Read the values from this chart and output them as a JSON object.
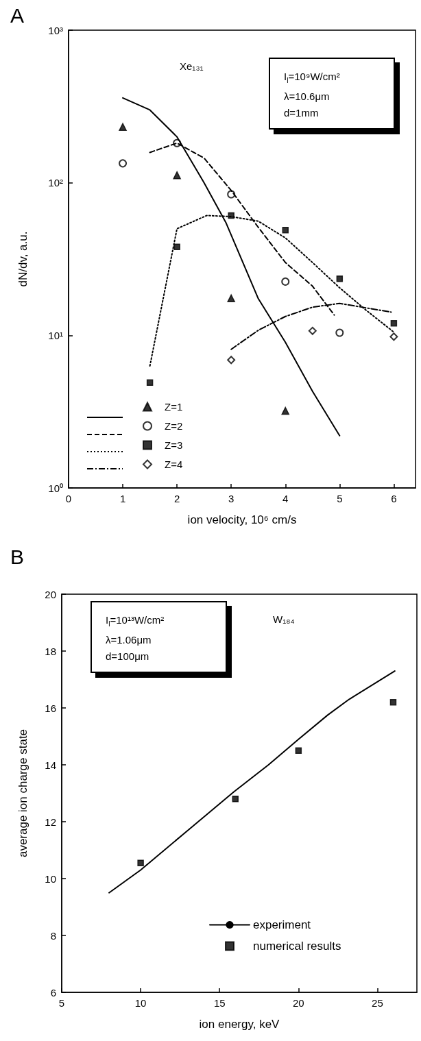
{
  "chart_data": [
    {
      "type": "line",
      "title": "A",
      "xlabel": "ion velocity, 10⁶ cm/s",
      "ylabel": "dN/dv, a.u.",
      "log": "y",
      "legend": "bottom left",
      "xlim": [
        0,
        6.4
      ],
      "xticks": [
        0,
        1,
        2,
        3,
        4,
        5,
        6
      ],
      "ylim": [
        1,
        1000
      ],
      "yticks": [
        {
          "value": 1,
          "label": "10⁰"
        },
        {
          "value": 10,
          "label": "10¹"
        },
        {
          "value": 100,
          "label": "10²"
        },
        {
          "value": 1000,
          "label": "10³"
        }
      ],
      "annotations": [
        "Xe₁₃₁",
        "I$_{l}$=10⁹W/cm²",
        "λ=10.6μm",
        "d=1mm"
      ],
      "series": [
        {
          "type": "line",
          "line_style": "solid",
          "color": "#000000",
          "x": [
            1,
            1.5,
            2,
            2.5,
            2.9,
            3.5,
            4,
            4.5,
            5
          ],
          "values": [
            360,
            300,
            200,
            100,
            55,
            17.4,
            9,
            4.3,
            2.2
          ]
        },
        {
          "type": "line",
          "line_style": "dashed",
          "color": "#000000",
          "x": [
            1.5,
            2,
            2.5,
            3,
            3.5,
            4,
            4.5,
            4.9
          ],
          "values": [
            158,
            182,
            145,
            89,
            51,
            30,
            21,
            13.6
          ]
        },
        {
          "type": "line",
          "line_style": "dotted",
          "color": "#000000",
          "x": [
            1.5,
            2,
            2.55,
            3,
            3.5,
            4,
            4.5,
            5,
            5.5,
            6
          ],
          "values": [
            6.3,
            50,
            61,
            60,
            56,
            43.5,
            30,
            20.5,
            14.5,
            10.5
          ]
        },
        {
          "type": "line",
          "line_style": "dashdot",
          "color": "#000000",
          "x": [
            3,
            3.5,
            4,
            4.5,
            5,
            5.95
          ],
          "values": [
            8.1,
            10.8,
            13.3,
            15.3,
            16.2,
            14.2
          ]
        },
        {
          "name": "Z=1",
          "type": "scatter",
          "marker": "triangle",
          "color": "#000000",
          "x": [
            1,
            2,
            3,
            4
          ],
          "values": [
            232,
            112,
            17.5,
            3.2
          ]
        },
        {
          "name": "Z=2",
          "type": "scatter",
          "marker": "circle",
          "color": "#000000",
          "x": [
            1,
            2,
            3,
            4,
            5
          ],
          "values": [
            134,
            182,
            84,
            22.5,
            10.4
          ]
        },
        {
          "name": "Z=3",
          "type": "scatter",
          "marker": "square",
          "color": "#000000",
          "x": [
            1.5,
            2,
            3,
            4,
            5,
            6
          ],
          "values": [
            4.9,
            38,
            61,
            49,
            23.5,
            12
          ]
        },
        {
          "name": "Z=4",
          "type": "scatter",
          "marker": "diamond",
          "color": "#000000",
          "x": [
            3,
            4.5,
            6
          ],
          "values": [
            6.9,
            10.7,
            9.8
          ]
        }
      ]
    },
    {
      "type": "line",
      "title": "B",
      "xlabel": "ion energy, keV",
      "ylabel": "average ion charge state",
      "legend": "bottom right",
      "xlim": [
        5,
        27.5
      ],
      "xticks": [
        5,
        10,
        15,
        20,
        25
      ],
      "ylim": [
        6,
        20
      ],
      "yticks": [
        6,
        8,
        10,
        12,
        14,
        16,
        18,
        20
      ],
      "annotations": [
        "W₁₈₄",
        "I$_{l}$=10¹³W/cm²",
        "λ=1.06μm",
        "d=100μm"
      ],
      "series": [
        {
          "name": "experiment",
          "type": "line",
          "line_style": "solid",
          "color": "#000000",
          "x": [
            8,
            10,
            13,
            15.9,
            18.1,
            20,
            21.85,
            23.2,
            26.1
          ],
          "values": [
            9.5,
            10.3,
            11.7,
            13.05,
            14.0,
            14.9,
            15.75,
            16.3,
            17.3
          ]
        },
        {
          "name": "numerical results",
          "type": "scatter",
          "marker": "square",
          "color": "#000000",
          "x": [
            10,
            16,
            20,
            26
          ],
          "values": [
            10.55,
            12.8,
            14.5,
            16.2
          ]
        }
      ]
    }
  ]
}
